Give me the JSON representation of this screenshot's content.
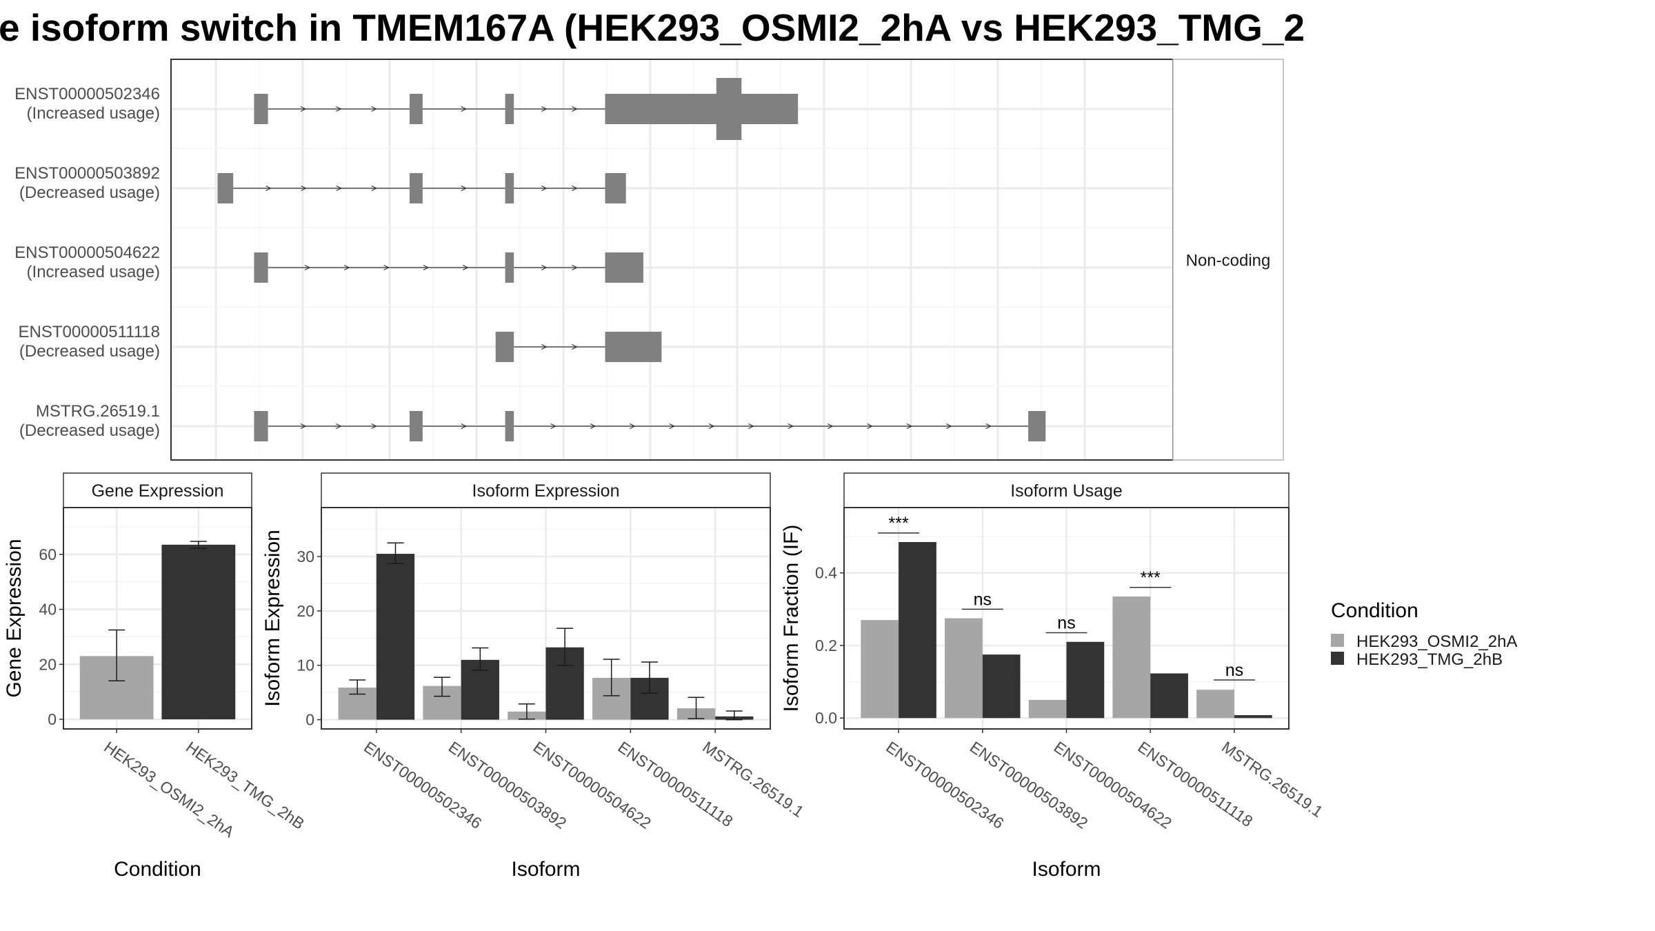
{
  "title": "e isoform switch in TMEM167A (HEK293_OSMI2_2hA vs HEK293_TMG_2",
  "colors": {
    "condition_a": "#a6a6a6",
    "condition_b": "#333333",
    "exon": "#808080",
    "grid": "#ebebeb",
    "strip_border": "#333333"
  },
  "legend": {
    "title": "Condition",
    "entries": [
      "HEK293_OSMI2_2hA",
      "HEK293_TMG_2hB"
    ]
  },
  "chart_data": [
    {
      "type": "gene-structure",
      "strip_label": "Non-coding",
      "x_unit": "genomic position (arbitrary)",
      "xlim": [
        0,
        1000
      ],
      "transcripts": [
        {
          "id": "ENST00000502346",
          "usage": "(Increased usage)",
          "exons": [
            [
              44,
              60
            ],
            [
              223,
              238
            ],
            [
              333,
              343
            ],
            [
              448,
              670
            ]
          ],
          "tall_block": [
            576,
            605
          ]
        },
        {
          "id": "ENST00000503892",
          "usage": "(Decreased usage)",
          "exons": [
            [
              2,
              20
            ],
            [
              223,
              238
            ],
            [
              333,
              343
            ],
            [
              448,
              472
            ]
          ]
        },
        {
          "id": "ENST00000504622",
          "usage": "(Increased usage)",
          "exons": [
            [
              44,
              60
            ],
            [
              333,
              343
            ],
            [
              448,
              492
            ]
          ]
        },
        {
          "id": "ENST00000511118",
          "usage": "(Decreased usage)",
          "exons": [
            [
              322,
              343
            ],
            [
              448,
              513
            ]
          ]
        },
        {
          "id": "MSTRG.26519.1",
          "usage": "(Decreased usage)",
          "exons": [
            [
              44,
              60
            ],
            [
              223,
              238
            ],
            [
              333,
              343
            ],
            [
              935,
              955
            ]
          ]
        }
      ]
    },
    {
      "type": "bar",
      "title": "Gene Expression",
      "xlabel": "Condition",
      "ylabel": "Gene Expression",
      "ylim": [
        -3.5,
        77
      ],
      "yticks": [
        0,
        20,
        40,
        60
      ],
      "categories": [
        "HEK293_OSMI2_2hA",
        "HEK293_TMG_2hB"
      ],
      "values": [
        23,
        63.5
      ],
      "errors": [
        [
          14,
          32.5
        ],
        [
          62.2,
          64.7
        ]
      ]
    },
    {
      "type": "bar",
      "title": "Isoform Expression",
      "xlabel": "Isoform",
      "ylabel": "Isoform Expression",
      "ylim": [
        -1.7,
        39
      ],
      "yticks": [
        0,
        10,
        20,
        30
      ],
      "categories": [
        "ENST00000502346",
        "ENST00000503892",
        "ENST00000504622",
        "ENST00000511118",
        "MSTRG.26519.1"
      ],
      "series": [
        {
          "name": "HEK293_OSMI2_2hA",
          "values": [
            5.9,
            6.2,
            1.5,
            7.7,
            2.1
          ],
          "errors": [
            [
              4.7,
              7.3
            ],
            [
              4.3,
              7.8
            ],
            [
              0.1,
              2.9
            ],
            [
              4.4,
              11.1
            ],
            [
              0.2,
              4.1
            ]
          ]
        },
        {
          "name": "HEK293_TMG_2hB",
          "values": [
            30.5,
            11.0,
            13.3,
            7.7,
            0.6
          ],
          "errors": [
            [
              28.7,
              32.5
            ],
            [
              9.1,
              13.2
            ],
            [
              10.0,
              16.8
            ],
            [
              4.9,
              10.6
            ],
            [
              0.0,
              1.6
            ]
          ]
        }
      ]
    },
    {
      "type": "bar",
      "title": "Isoform Usage",
      "xlabel": "Isoform",
      "ylabel": "Isoform Fraction (IF)",
      "ylim": [
        -0.03,
        0.58
      ],
      "yticks": [
        0.0,
        0.2,
        0.4
      ],
      "ytick_labels": [
        "0.0",
        "0.2",
        "0.4"
      ],
      "categories": [
        "ENST00000502346",
        "ENST00000503892",
        "ENST00000504622",
        "ENST00000511118",
        "MSTRG.26519.1"
      ],
      "series": [
        {
          "name": "HEK293_OSMI2_2hA",
          "values": [
            0.27,
            0.275,
            0.05,
            0.335,
            0.078
          ]
        },
        {
          "name": "HEK293_TMG_2hB",
          "values": [
            0.485,
            0.175,
            0.21,
            0.123,
            0.008
          ]
        }
      ],
      "significance": [
        {
          "label": "***",
          "y": 0.51
        },
        {
          "label": "ns",
          "y": 0.3
        },
        {
          "label": "ns",
          "y": 0.235
        },
        {
          "label": "***",
          "y": 0.36
        },
        {
          "label": "ns",
          "y": 0.105
        }
      ]
    }
  ]
}
